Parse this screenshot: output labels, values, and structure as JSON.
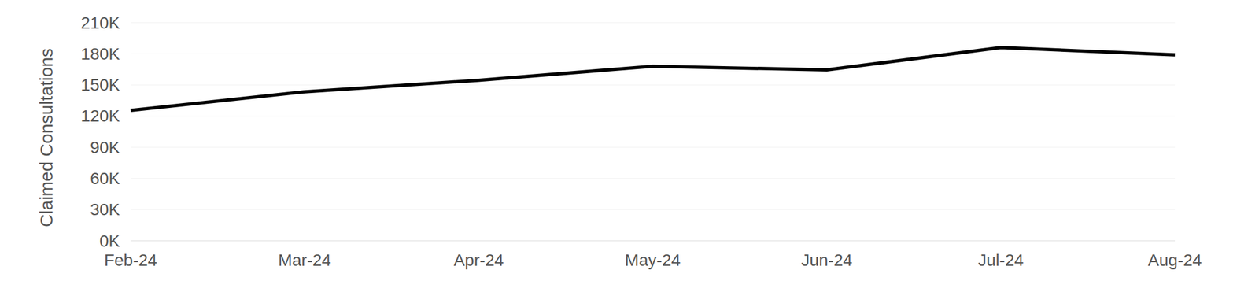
{
  "chart_data": {
    "type": "line",
    "y_label": "Claimed Consultations",
    "categories": [
      "Feb-24",
      "Mar-24",
      "Apr-24",
      "May-24",
      "Jun-24",
      "Jul-24",
      "Aug-24"
    ],
    "series": [
      {
        "name": "Claimed Consultations",
        "color": "#000000",
        "values": [
          125500,
          143500,
          154500,
          168000,
          164500,
          186000,
          179000
        ]
      }
    ],
    "ylim": [
      0,
      210000
    ],
    "yticks": [
      {
        "value": 0,
        "label": "0K"
      },
      {
        "value": 30000,
        "label": "30K"
      },
      {
        "value": 60000,
        "label": "60K"
      },
      {
        "value": 90000,
        "label": "90K"
      },
      {
        "value": 120000,
        "label": "120K"
      },
      {
        "value": 150000,
        "label": "150K"
      },
      {
        "value": 180000,
        "label": "180K"
      },
      {
        "value": 210000,
        "label": "210K"
      }
    ],
    "grid": true
  }
}
